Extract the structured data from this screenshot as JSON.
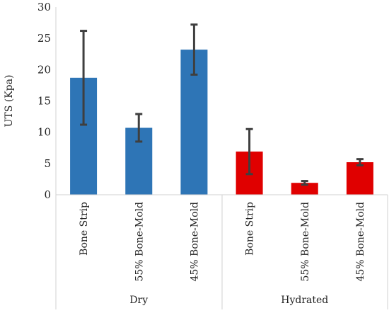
{
  "chart_data": {
    "type": "bar",
    "ylabel": "UTS (Kpa)",
    "ylim": [
      0,
      30
    ],
    "yticks": [
      0,
      5,
      10,
      15,
      20,
      25,
      30
    ],
    "grid": false,
    "legend": "none",
    "groups": [
      {
        "label": "Dry",
        "categories": [
          "Bone Strip",
          "55% Bone-Mold",
          "45% Bone-Mold"
        ],
        "values": [
          18.7,
          10.7,
          23.2
        ],
        "errors": [
          7.5,
          2.2,
          4.0
        ],
        "color": "#2e75b6"
      },
      {
        "label": "Hydrated",
        "categories": [
          "Bone Strip",
          "55% Bone-Mold",
          "45% Bone-Mold"
        ],
        "values": [
          6.9,
          1.9,
          5.2
        ],
        "errors": [
          3.6,
          0.3,
          0.5
        ],
        "color": "#e00000"
      }
    ],
    "error_bar_color": "#3f3f3f"
  }
}
